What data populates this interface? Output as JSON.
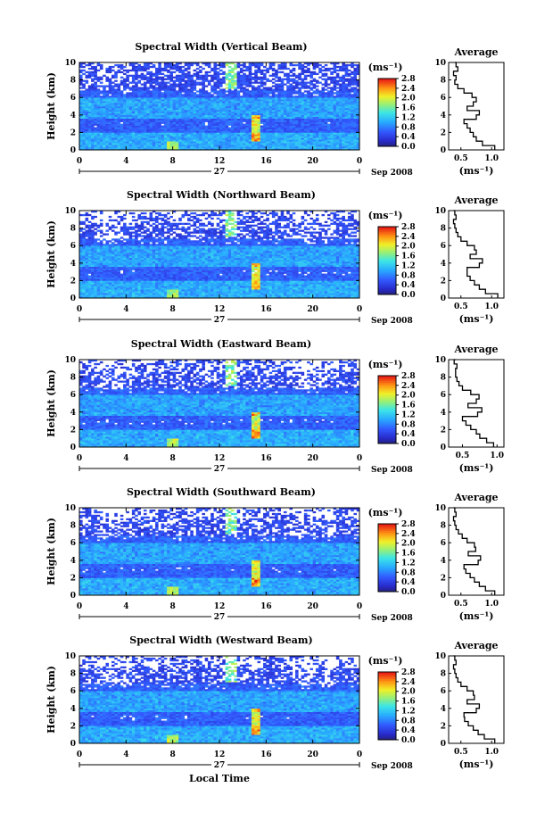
{
  "chart_data": [
    {
      "type": "heatmap",
      "title": "Spectral Width (Vertical Beam)",
      "ylabel": "Height (km)",
      "xlabel": "",
      "x_ticks": [
        "0",
        "4",
        "8",
        "12",
        "16",
        "20",
        "0"
      ],
      "y_ticks": [
        "0",
        "2",
        "4",
        "6",
        "8",
        "10"
      ],
      "xlim": [
        0,
        24
      ],
      "ylim": [
        0,
        10
      ],
      "date_label": "27",
      "month_label": "Sep 2008",
      "colorbar": {
        "unit": "(ms⁻¹)",
        "ticks": [
          "0.0",
          "0.4",
          "0.8",
          "1.2",
          "1.6",
          "2.0",
          "2.4",
          "2.8"
        ],
        "range": [
          0,
          2.8
        ]
      },
      "profile": {
        "title": "Average",
        "xlabel": "(ms⁻¹)",
        "x_ticks": [
          "0.5",
          "1.0"
        ],
        "xlim": [
          0.3,
          1.2
        ],
        "y_ticks": [
          "0",
          "2",
          "4",
          "6",
          "8",
          "10"
        ],
        "height": [
          0,
          0.5,
          1,
          1.5,
          2,
          2.5,
          3,
          3.5,
          4,
          4.5,
          5,
          5.5,
          6,
          6.5,
          7,
          7.5,
          8,
          8.5,
          9,
          9.5,
          10
        ],
        "value": [
          1.05,
          0.85,
          0.75,
          0.7,
          0.65,
          0.6,
          0.55,
          0.75,
          0.8,
          0.6,
          0.7,
          0.75,
          0.68,
          0.55,
          0.45,
          0.4,
          0.42,
          0.38,
          0.45,
          0.42,
          0.4
        ]
      }
    },
    {
      "type": "heatmap",
      "title": "Spectral Width (Northward Beam)",
      "ylabel": "Height (km)",
      "xlabel": "",
      "x_ticks": [
        "0",
        "4",
        "8",
        "12",
        "16",
        "20",
        "0"
      ],
      "y_ticks": [
        "0",
        "2",
        "4",
        "6",
        "8",
        "10"
      ],
      "xlim": [
        0,
        24
      ],
      "ylim": [
        0,
        10
      ],
      "date_label": "27",
      "month_label": "Sep 2008",
      "colorbar": {
        "unit": "(ms⁻¹)",
        "ticks": [
          "0.0",
          "0.4",
          "0.8",
          "1.2",
          "1.6",
          "2.0",
          "2.4",
          "2.8"
        ],
        "range": [
          0,
          2.8
        ]
      },
      "profile": {
        "title": "Average",
        "xlabel": "(ms⁻¹)",
        "x_ticks": [
          "0.5",
          "1.0"
        ],
        "xlim": [
          0.3,
          1.2
        ],
        "y_ticks": [
          "0",
          "2",
          "4",
          "6",
          "8",
          "10"
        ],
        "height": [
          0,
          0.5,
          1,
          1.5,
          2,
          2.5,
          3,
          3.5,
          4,
          4.5,
          5,
          5.5,
          6,
          6.5,
          7,
          7.5,
          8,
          8.5,
          9,
          9.5,
          10
        ],
        "value": [
          1.1,
          0.9,
          0.8,
          0.72,
          0.65,
          0.6,
          0.6,
          0.8,
          0.85,
          0.65,
          0.75,
          0.72,
          0.6,
          0.5,
          0.45,
          0.42,
          0.4,
          0.38,
          0.42,
          0.4,
          0.38
        ]
      }
    },
    {
      "type": "heatmap",
      "title": "Spectral Width (Eastward Beam)",
      "ylabel": "Height (km)",
      "xlabel": "",
      "x_ticks": [
        "0",
        "4",
        "8",
        "12",
        "16",
        "20",
        "0"
      ],
      "y_ticks": [
        "0",
        "2",
        "4",
        "6",
        "8",
        "10"
      ],
      "xlim": [
        0,
        24
      ],
      "ylim": [
        0,
        10
      ],
      "date_label": "27",
      "month_label": "Sep 2008",
      "colorbar": {
        "unit": "(ms⁻¹)",
        "ticks": [
          "0.0",
          "0.4",
          "0.8",
          "1.2",
          "1.6",
          "2.0",
          "2.4",
          "2.8"
        ],
        "range": [
          0,
          2.8
        ]
      },
      "profile": {
        "title": "Average",
        "xlabel": "(ms⁻¹)",
        "x_ticks": [
          "0.5",
          "1.0"
        ],
        "xlim": [
          0.3,
          1.1
        ],
        "y_ticks": [
          "0",
          "2",
          "4",
          "6",
          "8",
          "10"
        ],
        "height": [
          0,
          0.5,
          1,
          1.5,
          2,
          2.5,
          3,
          3.5,
          4,
          4.5,
          5,
          5.5,
          6,
          6.5,
          7,
          7.5,
          8,
          8.5,
          9,
          9.5,
          10
        ],
        "value": [
          0.95,
          0.85,
          0.75,
          0.7,
          0.62,
          0.55,
          0.5,
          0.72,
          0.78,
          0.58,
          0.7,
          0.74,
          0.62,
          0.5,
          0.45,
          0.42,
          0.4,
          0.4,
          0.42,
          0.38,
          0.4
        ]
      }
    },
    {
      "type": "heatmap",
      "title": "Spectral Width (Southward Beam)",
      "ylabel": "Height (km)",
      "xlabel": "",
      "x_ticks": [
        "0",
        "4",
        "8",
        "12",
        "16",
        "20",
        "0"
      ],
      "y_ticks": [
        "0",
        "2",
        "4",
        "6",
        "8",
        "10"
      ],
      "xlim": [
        0,
        24
      ],
      "ylim": [
        0,
        10
      ],
      "date_label": "27",
      "month_label": "Sep 2008",
      "colorbar": {
        "unit": "(ms⁻¹)",
        "ticks": [
          "0.0",
          "0.4",
          "0.8",
          "1.2",
          "1.6",
          "2.0",
          "2.4",
          "2.8"
        ],
        "range": [
          0,
          2.8
        ]
      },
      "profile": {
        "title": "Average",
        "xlabel": "(ms⁻¹)",
        "x_ticks": [
          "0.5",
          "1.0"
        ],
        "xlim": [
          0.3,
          1.2
        ],
        "y_ticks": [
          "0",
          "2",
          "4",
          "6",
          "8",
          "10"
        ],
        "height": [
          0,
          0.5,
          1,
          1.5,
          2,
          2.5,
          3,
          3.5,
          4,
          4.5,
          5,
          5.5,
          6,
          6.5,
          7,
          7.5,
          8,
          8.5,
          9,
          9.5,
          10
        ],
        "value": [
          1.05,
          0.9,
          0.8,
          0.72,
          0.65,
          0.58,
          0.55,
          0.78,
          0.82,
          0.62,
          0.74,
          0.72,
          0.6,
          0.52,
          0.46,
          0.42,
          0.4,
          0.38,
          0.42,
          0.4,
          0.38
        ]
      }
    },
    {
      "type": "heatmap",
      "title": "Spectral Width (Westward Beam)",
      "ylabel": "Height (km)",
      "xlabel": "Local Time",
      "x_ticks": [
        "0",
        "4",
        "8",
        "12",
        "16",
        "20",
        "0"
      ],
      "y_ticks": [
        "0",
        "2",
        "4",
        "6",
        "8",
        "10"
      ],
      "xlim": [
        0,
        24
      ],
      "ylim": [
        0,
        10
      ],
      "date_label": "27",
      "month_label": "Sep 2008",
      "colorbar": {
        "unit": "(ms⁻¹)",
        "ticks": [
          "0.0",
          "0.4",
          "0.8",
          "1.2",
          "1.6",
          "2.0",
          "2.4",
          "2.8"
        ],
        "range": [
          0,
          2.8
        ]
      },
      "profile": {
        "title": "Average",
        "xlabel": "(ms⁻¹)",
        "x_ticks": [
          "0.5",
          "1.0"
        ],
        "xlim": [
          0.3,
          1.2
        ],
        "y_ticks": [
          "0",
          "2",
          "4",
          "6",
          "8",
          "10"
        ],
        "height": [
          0,
          0.5,
          1,
          1.5,
          2,
          2.5,
          3,
          3.5,
          4,
          4.5,
          5,
          5.5,
          6,
          6.5,
          7,
          7.5,
          8,
          8.5,
          9,
          9.5,
          10
        ],
        "value": [
          1.05,
          0.88,
          0.78,
          0.7,
          0.62,
          0.56,
          0.55,
          0.75,
          0.8,
          0.6,
          0.72,
          0.7,
          0.6,
          0.5,
          0.45,
          0.42,
          0.4,
          0.38,
          0.42,
          0.4,
          0.38
        ]
      }
    }
  ]
}
